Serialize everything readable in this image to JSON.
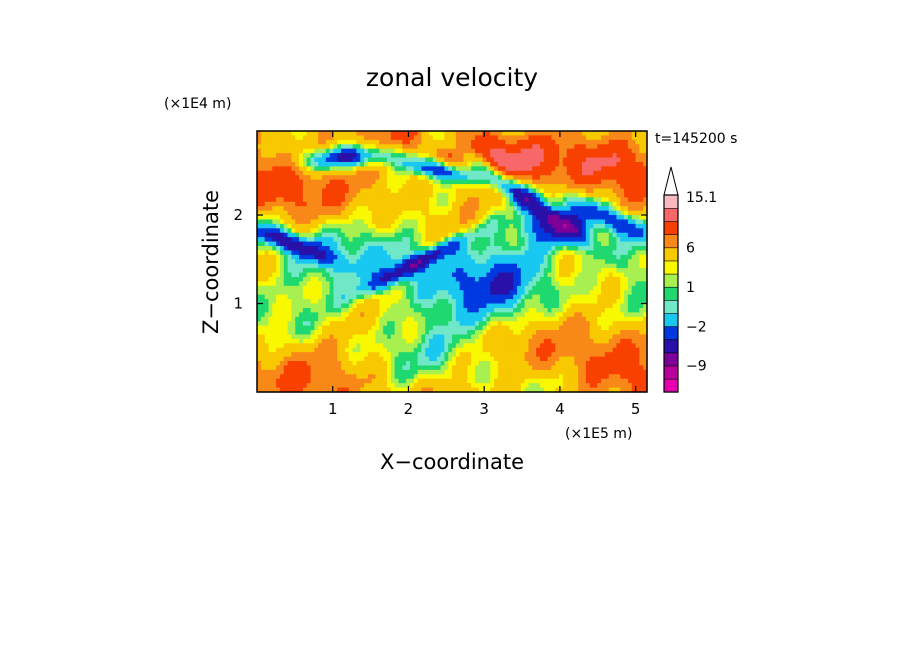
{
  "chart_data": {
    "type": "heatmap",
    "title": "zonal velocity",
    "xlabel": "X−coordinate",
    "ylabel": "Z−coordinate",
    "x_scale_label": "(×1E5 m)",
    "y_scale_label": "(×1E4 m)",
    "time_label": "t=145200 s",
    "xlim": [
      0,
      5.15
    ],
    "ylim": [
      0,
      2.95
    ],
    "x_ticks": [
      1,
      2,
      3,
      4,
      5
    ],
    "x_tick_labels": [
      "1",
      "2",
      "3",
      "4",
      "5"
    ],
    "y_ticks": [
      1,
      2
    ],
    "y_tick_labels": [
      "1",
      "2"
    ],
    "colorbar": {
      "levels": [
        -15,
        -12,
        -9,
        -6,
        -4,
        -2,
        -1,
        0,
        1,
        2,
        4,
        6,
        9,
        12,
        15.1
      ],
      "colors": [
        "#e800b0",
        "#b8009c",
        "#7c0098",
        "#2810a8",
        "#0038e0",
        "#18c8f0",
        "#70e8c8",
        "#20d870",
        "#a8f050",
        "#f8f800",
        "#f8c800",
        "#f88818",
        "#f84000",
        "#f86868",
        "#f8b8c0",
        "#ffffff"
      ],
      "tick_labels": [
        "15.1",
        "6",
        "1",
        "−2",
        "−9"
      ],
      "tick_values": [
        15.1,
        6,
        1,
        -2,
        -9
      ]
    },
    "grid_resolution": [
      102,
      59
    ],
    "grid": false
  }
}
